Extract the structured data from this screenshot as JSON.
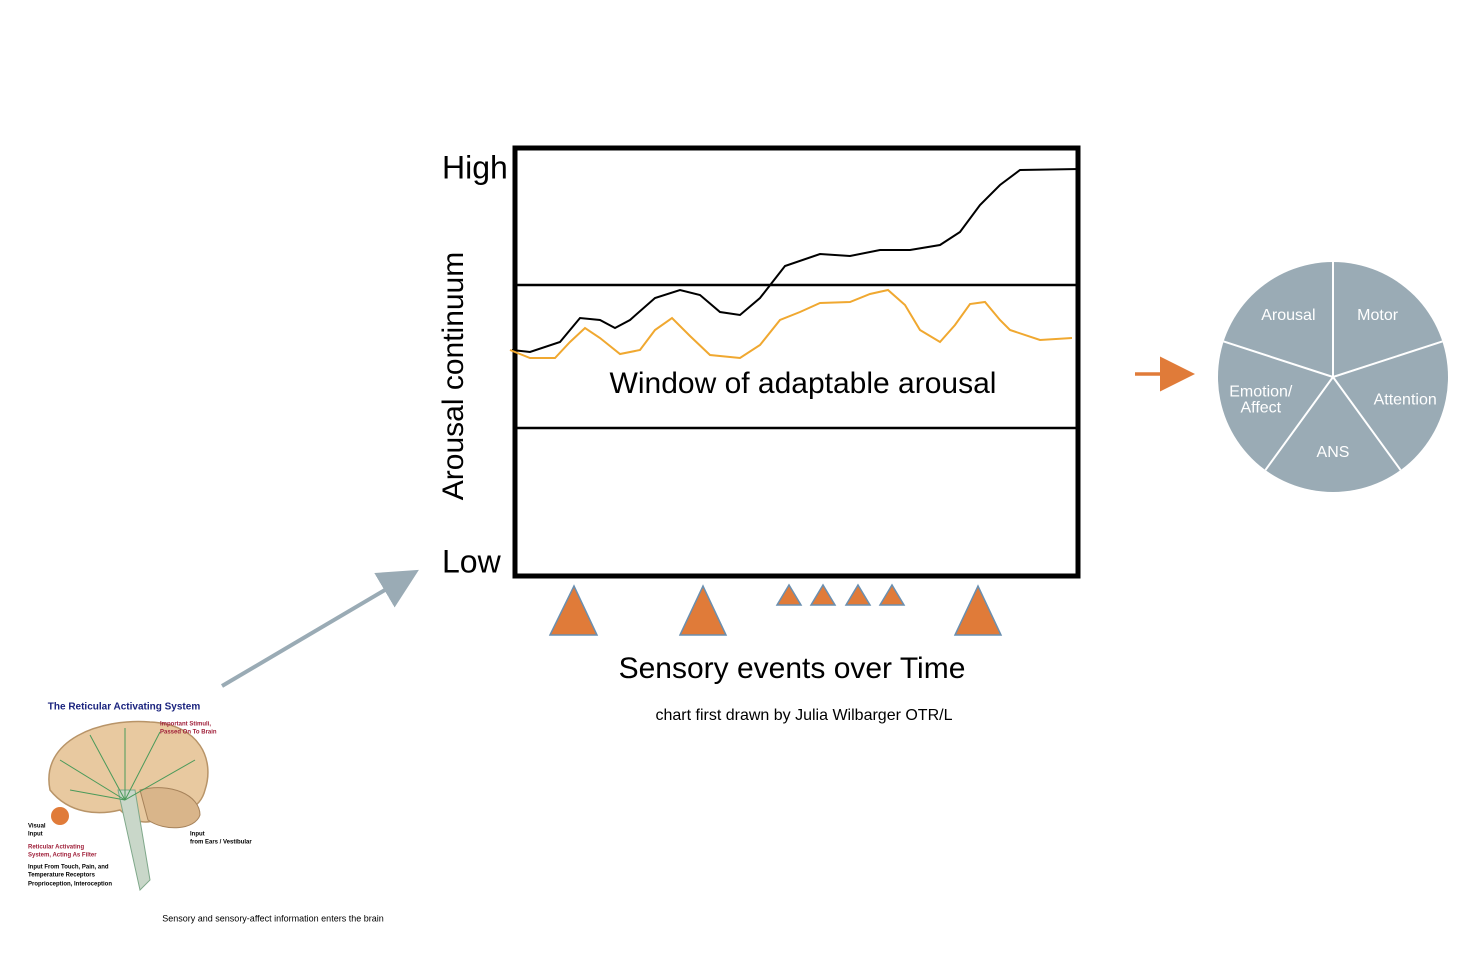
{
  "diagram": {
    "axis": {
      "high": "High",
      "low": "Low",
      "label": "Arousal continuum"
    },
    "window_label": "Window of adaptable arousal",
    "x_label": "Sensory events over Time",
    "credit": "chart first drawn by Julia Wilbarger OTR/L",
    "pie": {
      "slices": [
        "Motor",
        "Attention",
        "ANS",
        [
          "Emotion/",
          "Affect"
        ],
        "Arousal"
      ]
    },
    "brain": {
      "title": "The Reticular Activating System",
      "labels": [
        "Important Stimuli,",
        "Passed On To Brain",
        "Visual",
        "Input",
        "Reticular Activating",
        "System, Acting As Filter",
        "Input From Touch, Pain, and",
        "Temperature Receptors",
        "Proprioception, Interoception",
        "Input",
        "from Ears / Vestibular"
      ],
      "caption": "Sensory and sensory-affect information enters the brain"
    }
  }
}
